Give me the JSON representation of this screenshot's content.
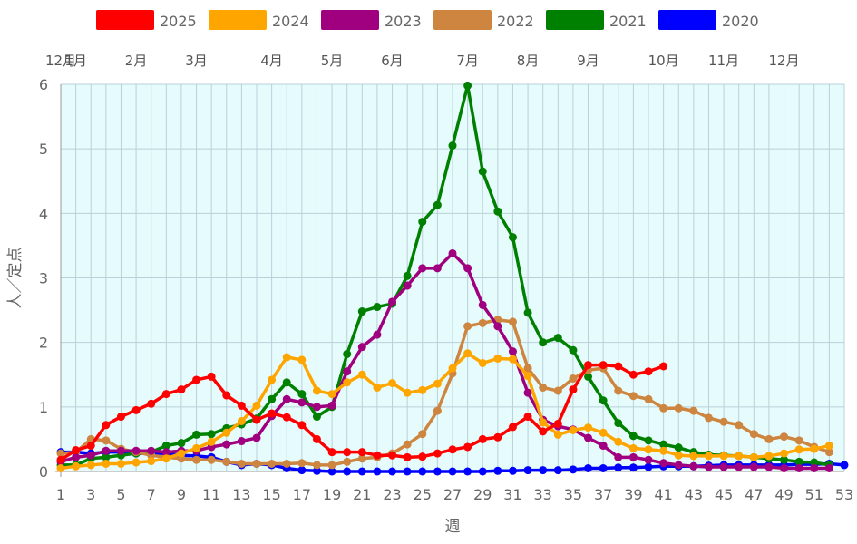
{
  "chart_data": {
    "type": "line",
    "xlabel": "週",
    "ylabel": "人／定点",
    "xlim": [
      1,
      53
    ],
    "ylim": [
      0,
      6
    ],
    "x_ticks": [
      1,
      3,
      5,
      7,
      9,
      11,
      13,
      15,
      17,
      19,
      21,
      23,
      25,
      27,
      29,
      31,
      33,
      35,
      37,
      39,
      41,
      43,
      45,
      47,
      49,
      51,
      53
    ],
    "y_ticks": [
      0,
      1,
      2,
      3,
      4,
      5,
      6
    ],
    "grid": true,
    "legend_position": "top",
    "month_labels": [
      {
        "week": 1,
        "label": "12月"
      },
      {
        "week": 2,
        "label": "1月"
      },
      {
        "week": 6,
        "label": "2月"
      },
      {
        "week": 10,
        "label": "3月"
      },
      {
        "week": 15,
        "label": "4月"
      },
      {
        "week": 19,
        "label": "5月"
      },
      {
        "week": 23,
        "label": "6月"
      },
      {
        "week": 28,
        "label": "7月"
      },
      {
        "week": 32,
        "label": "8月"
      },
      {
        "week": 36,
        "label": "9月"
      },
      {
        "week": 41,
        "label": "10月"
      },
      {
        "week": 45,
        "label": "11月"
      },
      {
        "week": 49,
        "label": "12月"
      }
    ],
    "series": [
      {
        "name": "2025",
        "color": "#ff0000",
        "values": [
          0.18,
          0.33,
          0.4,
          0.72,
          0.85,
          0.95,
          1.05,
          1.2,
          1.27,
          1.42,
          1.47,
          1.18,
          1.02,
          0.8,
          0.9,
          0.84,
          0.72,
          0.5,
          0.3,
          0.3,
          0.3,
          0.25,
          0.25,
          0.22,
          0.23,
          0.28,
          0.34,
          0.38,
          0.5,
          0.53,
          0.69,
          0.85,
          0.62,
          0.74,
          1.27,
          1.65,
          1.65,
          1.63,
          1.5,
          1.55,
          1.63
        ]
      },
      {
        "name": "2024",
        "color": "#ffa500",
        "values": [
          0.05,
          0.08,
          0.1,
          0.12,
          0.12,
          0.14,
          0.16,
          0.2,
          0.28,
          0.36,
          0.46,
          0.6,
          0.78,
          1.02,
          1.42,
          1.77,
          1.73,
          1.25,
          1.2,
          1.38,
          1.5,
          1.3,
          1.37,
          1.22,
          1.26,
          1.36,
          1.6,
          1.83,
          1.68,
          1.75,
          1.74,
          1.48,
          0.76,
          0.57,
          0.64,
          0.68,
          0.6,
          0.46,
          0.36,
          0.34,
          0.32,
          0.25,
          0.24,
          0.24,
          0.24,
          0.24,
          0.22,
          0.24,
          0.28,
          0.34,
          0.35,
          0.4
        ]
      },
      {
        "name": "2023",
        "color": "#a0007f",
        "values": [
          0.15,
          0.22,
          0.25,
          0.32,
          0.32,
          0.32,
          0.32,
          0.3,
          0.32,
          0.32,
          0.38,
          0.42,
          0.47,
          0.52,
          0.86,
          1.12,
          1.07,
          1.0,
          1.02,
          1.55,
          1.93,
          2.12,
          2.63,
          2.88,
          3.15,
          3.15,
          3.38,
          3.15,
          2.58,
          2.25,
          1.86,
          1.22,
          0.8,
          0.7,
          0.65,
          0.52,
          0.4,
          0.22,
          0.22,
          0.18,
          0.13,
          0.1,
          0.08,
          0.07,
          0.07,
          0.07,
          0.07,
          0.07,
          0.05,
          0.05,
          0.05,
          0.05
        ]
      },
      {
        "name": "2022",
        "color": "#cd853f",
        "values": [
          0.28,
          0.3,
          0.5,
          0.48,
          0.35,
          0.3,
          0.25,
          0.22,
          0.2,
          0.18,
          0.18,
          0.15,
          0.12,
          0.12,
          0.12,
          0.12,
          0.13,
          0.1,
          0.1,
          0.15,
          0.2,
          0.22,
          0.28,
          0.42,
          0.58,
          0.94,
          1.52,
          2.25,
          2.3,
          2.35,
          2.32,
          1.6,
          1.3,
          1.25,
          1.44,
          1.57,
          1.6,
          1.25,
          1.17,
          1.12,
          0.98,
          0.98,
          0.94,
          0.83,
          0.77,
          0.72,
          0.58,
          0.5,
          0.54,
          0.48,
          0.38,
          0.3
        ]
      },
      {
        "name": "2021",
        "color": "#008000",
        "values": [
          0.1,
          0.1,
          0.2,
          0.22,
          0.25,
          0.28,
          0.3,
          0.4,
          0.44,
          0.57,
          0.58,
          0.67,
          0.73,
          0.82,
          1.12,
          1.38,
          1.2,
          0.85,
          1.0,
          1.82,
          2.48,
          2.55,
          2.6,
          3.03,
          3.87,
          4.13,
          5.05,
          5.98,
          4.65,
          4.03,
          3.63,
          2.46,
          2.0,
          2.07,
          1.88,
          1.47,
          1.1,
          0.75,
          0.55,
          0.48,
          0.42,
          0.37,
          0.3,
          0.26,
          0.25,
          0.24,
          0.22,
          0.2,
          0.18,
          0.15,
          0.14,
          0.1
        ]
      },
      {
        "name": "2020",
        "color": "#0000ff",
        "values": [
          0.3,
          0.3,
          0.28,
          0.3,
          0.3,
          0.28,
          0.28,
          0.28,
          0.25,
          0.24,
          0.22,
          0.15,
          0.1,
          0.12,
          0.1,
          0.05,
          0.02,
          0.01,
          0.0,
          0.0,
          0.0,
          0.0,
          0.0,
          0.0,
          0.0,
          0.0,
          0.0,
          0.0,
          0.0,
          0.01,
          0.01,
          0.02,
          0.02,
          0.02,
          0.03,
          0.05,
          0.05,
          0.06,
          0.06,
          0.07,
          0.08,
          0.08,
          0.08,
          0.09,
          0.1,
          0.1,
          0.1,
          0.1,
          0.1,
          0.11,
          0.11,
          0.12,
          0.1
        ]
      }
    ]
  }
}
